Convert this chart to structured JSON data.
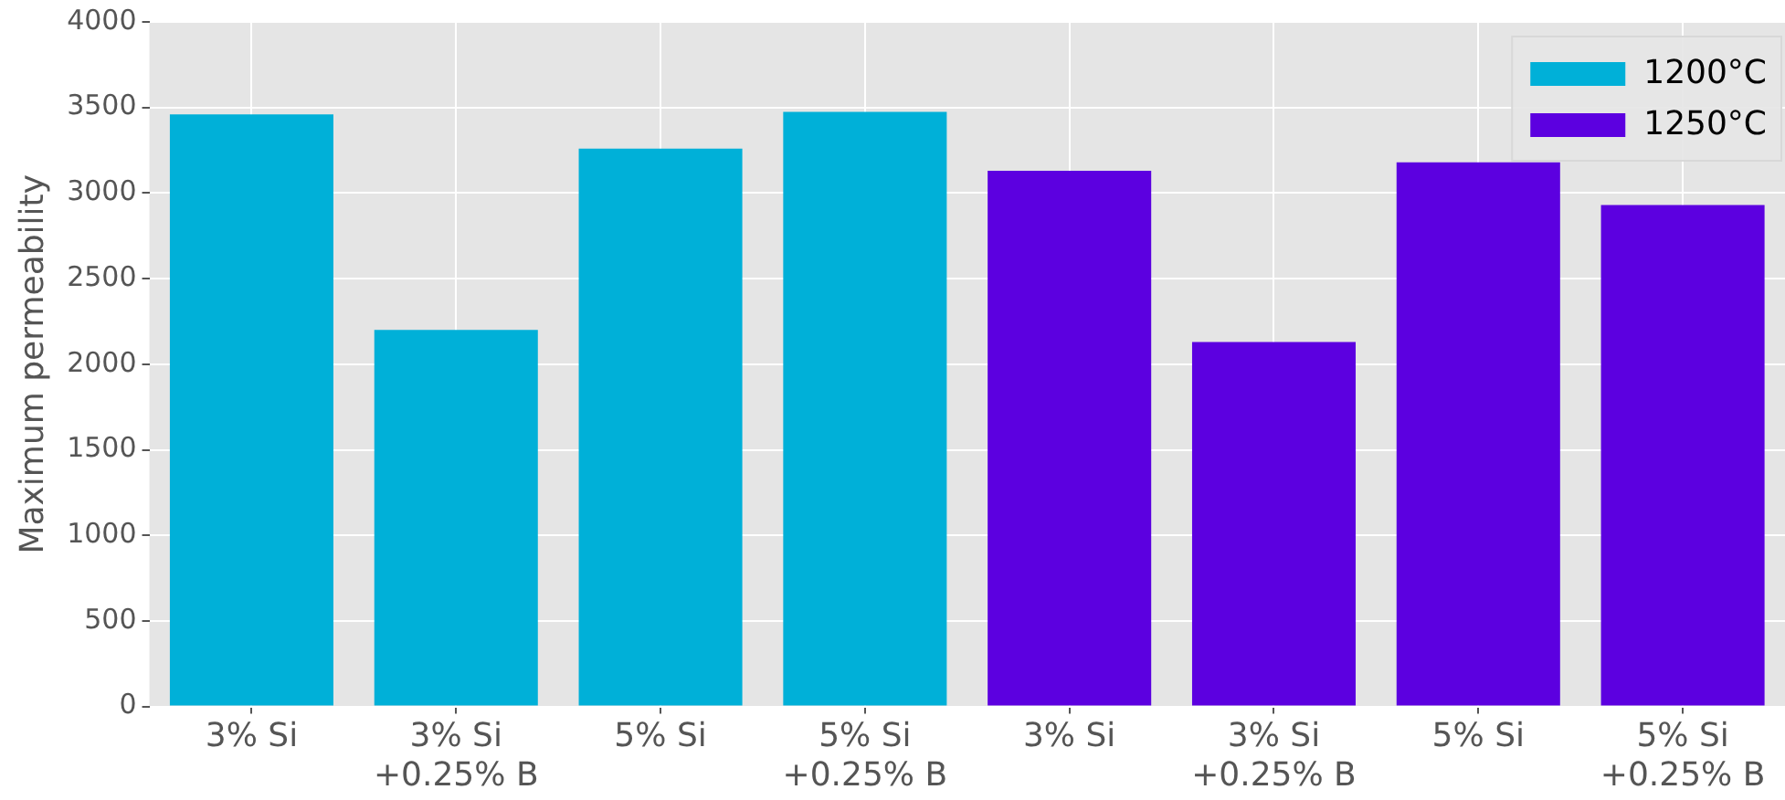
{
  "chart_data": {
    "type": "bar",
    "ylabel": "Maximum permeability",
    "categories": [
      "3% Si",
      "3% Si\n+0.25% B",
      "5% Si",
      "5% Si\n+0.25% B",
      "3% Si",
      "3% Si\n+0.25% B",
      "5% Si",
      "5% Si\n+0.25% B"
    ],
    "series": [
      {
        "name": "1200°C",
        "color": "#00b0d8",
        "values": [
          3460,
          2200,
          3260,
          3475,
          null,
          null,
          null,
          null
        ]
      },
      {
        "name": "1250°C",
        "color": "#5c00e0",
        "values": [
          null,
          null,
          null,
          null,
          3130,
          2130,
          3180,
          2930
        ]
      }
    ],
    "ylim": [
      0,
      4000
    ],
    "yticks": [
      0,
      500,
      1000,
      1500,
      2000,
      2500,
      3000,
      3500,
      4000
    ],
    "grid": true,
    "legend": "top right"
  }
}
